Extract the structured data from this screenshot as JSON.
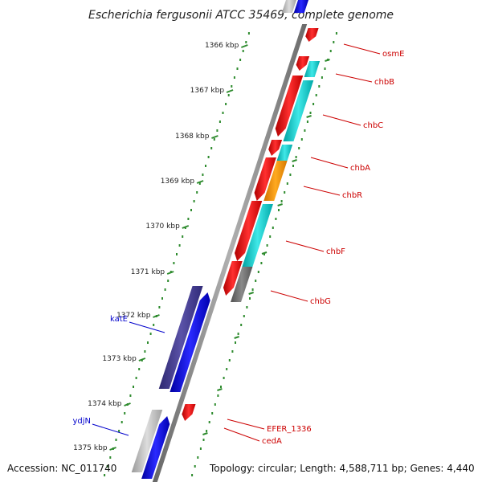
{
  "title": "Escherichia fergusonii ATCC 35469, complete genome",
  "footer": {
    "accession": "Accession: NC_011740",
    "topology": "Topology: circular; Length: 4,588,711 bp; Genes: 4,440"
  },
  "colors": {
    "forward_cds": "#ee0000",
    "reverse_cds": "#0000ee",
    "teal": "#00c8c8",
    "orange": "#ff9900",
    "slate": "#4a4290",
    "grey_gene": "#707070",
    "light_grey": "#bbbbbb",
    "backbone": "#888888",
    "ticks": "#2e8b2e",
    "label_red": "#cc0000",
    "label_blue": "#0000cc"
  },
  "ticks": [
    "1366 kbp",
    "1367 kbp",
    "1368 kbp",
    "1369 kbp",
    "1370 kbp",
    "1371 kbp",
    "1372 kbp",
    "1373 kbp",
    "1374 kbp",
    "1375 kbp"
  ],
  "genes_right": [
    {
      "name": "osmE",
      "color_key": "label_red"
    },
    {
      "name": "chbB",
      "color_key": "label_red"
    },
    {
      "name": "chbC",
      "color_key": "label_red"
    },
    {
      "name": "chbA",
      "color_key": "label_red"
    },
    {
      "name": "chbR",
      "color_key": "label_red"
    },
    {
      "name": "chbF",
      "color_key": "label_red"
    },
    {
      "name": "chbG",
      "color_key": "label_red"
    },
    {
      "name": "EFER_1336",
      "color_key": "label_red"
    },
    {
      "name": "cedA",
      "color_key": "label_red"
    }
  ],
  "genes_left": [
    {
      "name": "katE",
      "color_key": "label_blue"
    },
    {
      "name": "ydjN",
      "color_key": "label_blue"
    }
  ]
}
